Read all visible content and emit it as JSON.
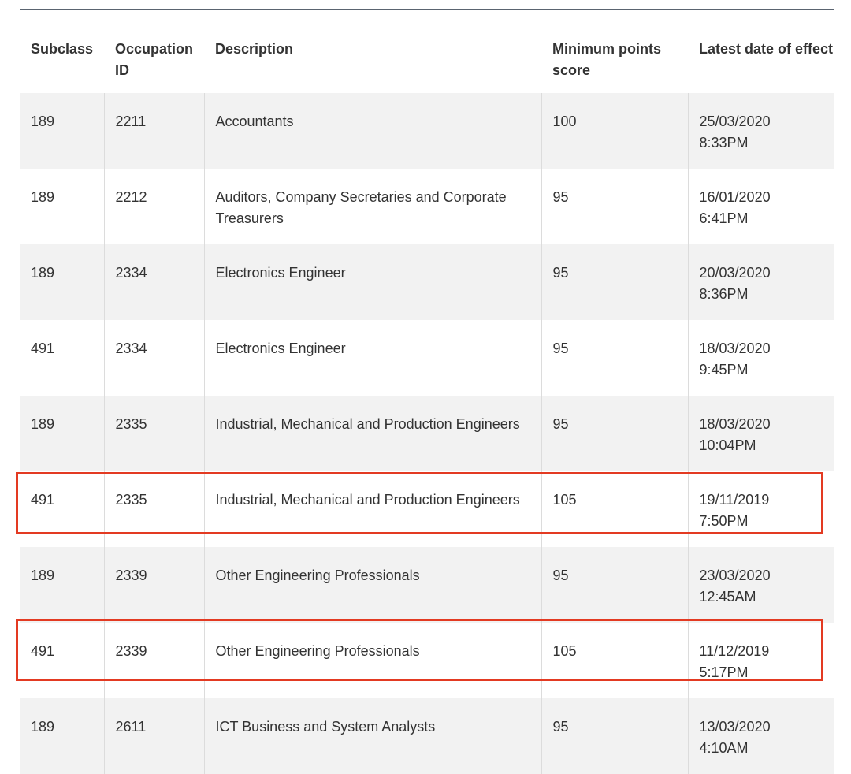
{
  "table": {
    "headers": {
      "subclass": "Subclass",
      "occupation_id": "Occupation ID",
      "description": "Description",
      "minimum_points": "Minimum points score",
      "latest_date": "Latest date of effect"
    },
    "rows": [
      {
        "subclass": "189",
        "occupation_id": "2211",
        "description": "Accountants",
        "minimum_points": "100",
        "date": "25/03/2020",
        "time": "8:33PM",
        "highlighted": false
      },
      {
        "subclass": "189",
        "occupation_id": "2212",
        "description": "Auditors, Company Secretaries and Corporate Treasurers",
        "minimum_points": "95",
        "date": "16/01/2020",
        "time": "6:41PM",
        "highlighted": false
      },
      {
        "subclass": "189",
        "occupation_id": "2334",
        "description": "Electronics Engineer",
        "minimum_points": "95",
        "date": "20/03/2020",
        "time": "8:36PM",
        "highlighted": false
      },
      {
        "subclass": "491",
        "occupation_id": "2334",
        "description": "Electronics Engineer",
        "minimum_points": "95",
        "date": "18/03/2020",
        "time": "9:45PM",
        "highlighted": false
      },
      {
        "subclass": "189",
        "occupation_id": "2335",
        "description": "Industrial, Mechanical and Production Engineers",
        "minimum_points": "95",
        "date": "18/03/2020",
        "time": "10:04PM",
        "highlighted": false
      },
      {
        "subclass": "491",
        "occupation_id": "2335",
        "description": "Industrial, Mechanical and Production Engineers",
        "minimum_points": "105",
        "date": "19/11/2019",
        "time": "7:50PM",
        "highlighted": true
      },
      {
        "subclass": "189",
        "occupation_id": "2339",
        "description": "Other Engineering Professionals",
        "minimum_points": "95",
        "date": "23/03/2020",
        "time": "12:45AM",
        "highlighted": false
      },
      {
        "subclass": "491",
        "occupation_id": "2339",
        "description": "Other Engineering Professionals",
        "minimum_points": "105",
        "date": "11/12/2019",
        "time": "5:17PM",
        "highlighted": true
      },
      {
        "subclass": "189",
        "occupation_id": "2611",
        "description": "ICT Business and System Analysts",
        "minimum_points": "95",
        "date": "13/03/2020",
        "time": "4:10AM",
        "highlighted": false
      }
    ]
  },
  "colors": {
    "highlight_border": "#e33a22",
    "row_alt_background": "#f2f2f2",
    "text": "#333333",
    "top_rule": "#5a6470"
  }
}
